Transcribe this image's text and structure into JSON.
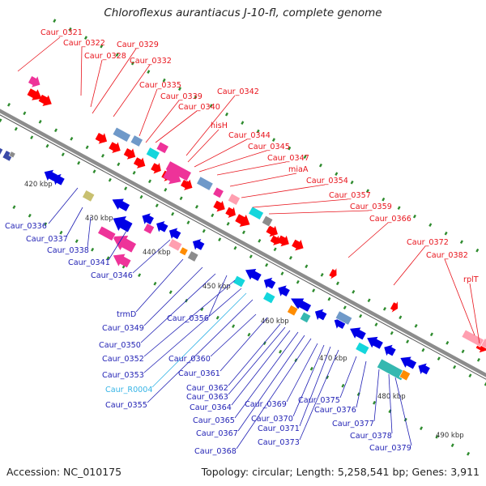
{
  "header": {
    "title": "Chloroflexus aurantiacus J-10-fl, complete genome"
  },
  "footer": {
    "accession": "Accession: NC_010175",
    "summary": "Topology: circular; Length: 5,258,541 bp; Genes: 3,911"
  },
  "colors": {
    "forward_label": "#e8141c",
    "reverse_label": "#1f1fb4",
    "rna_label": "#35b4e6",
    "backbone": "#8c8c8c",
    "tick": "#2e8b2e",
    "cds_forward": "#ff0000",
    "cds_reverse": "#0000e6",
    "pink": "#ee3399",
    "light_pink": "#ff9fb0",
    "steel": "#6f99c9",
    "purple": "#3a4aa8",
    "cyan": "#14d6dc",
    "teal": "#35b8b0",
    "orange": "#ff8c00",
    "gray": "#8c8c8c",
    "khaki": "#c8c070"
  },
  "scale_labels": [
    "420 kbp",
    "430 kbp",
    "440 kbp",
    "450 kbp",
    "460 kbp",
    "470 kbp",
    "480 kbp",
    "490 kbp"
  ],
  "forward_genes": [
    "Caur_0321",
    "Caur_0322",
    "Caur_0328",
    "Caur_0329",
    "Caur_0332",
    "Caur_0335",
    "Caur_0339",
    "Caur_0340",
    "Caur_0342",
    "hisH",
    "Caur_0344",
    "Caur_0345",
    "Caur_0347",
    "miaA",
    "Caur_0354",
    "Caur_0357",
    "Caur_0359",
    "Caur_0366",
    "Caur_0372",
    "Caur_0382",
    "rplT"
  ],
  "reverse_genes": [
    "Caur_0336",
    "Caur_0337",
    "Caur_0338",
    "Caur_0341",
    "Caur_0346",
    "trmD",
    "Caur_0349",
    "Caur_0350",
    "Caur_0352",
    "Caur_0353",
    "Caur_R0004",
    "Caur_0355",
    "Caur_0356",
    "Caur_0360",
    "Caur_0361",
    "Caur_0362",
    "Caur_0363",
    "Caur_0364",
    "Caur_0365",
    "Caur_0367",
    "Caur_0368",
    "Caur_0369",
    "Caur_0370",
    "Caur_0371",
    "Caur_0373",
    "Caur_0375",
    "Caur_0376",
    "Caur_0377",
    "Caur_0378",
    "Caur_0379"
  ],
  "rna_genes": [
    "Caur_R0004"
  ]
}
